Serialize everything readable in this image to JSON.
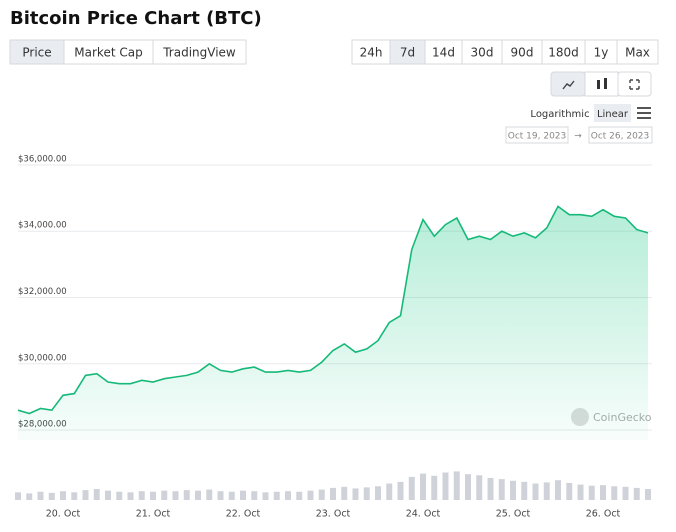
{
  "chart_data": {
    "type": "area",
    "title": "Bitcoin Price Chart (BTC)",
    "tabs": [
      "Price",
      "Market Cap",
      "TradingView"
    ],
    "tabs_selected": 0,
    "ranges": [
      "24h",
      "7d",
      "14d",
      "30d",
      "90d",
      "180d",
      "1y",
      "Max"
    ],
    "ranges_selected": 1,
    "scale_options": [
      "Logarithmic",
      "Linear"
    ],
    "scale_selected": 1,
    "log_scale": false,
    "date_from": "Oct 19, 2023",
    "date_arrow": "→",
    "date_to": "Oct 26, 2023",
    "watermark": "CoinGecko",
    "color": "#16b979",
    "grid": true,
    "categories": [
      null,
      null,
      null,
      null,
      "20. Oct",
      null,
      null,
      null,
      null,
      null,
      null,
      null,
      "21. Oct",
      null,
      null,
      null,
      null,
      null,
      null,
      null,
      "22. Oct",
      null,
      null,
      null,
      null,
      null,
      null,
      null,
      "23. Oct",
      null,
      null,
      null,
      null,
      null,
      null,
      null,
      "24. Oct",
      null,
      null,
      null,
      null,
      null,
      null,
      null,
      "25. Oct",
      null,
      null,
      null,
      null,
      null,
      null,
      null,
      "26. Oct",
      null,
      null,
      null,
      null
    ],
    "values": [
      28600,
      28500,
      28650,
      28600,
      29050,
      29100,
      29650,
      29700,
      29450,
      29400,
      29400,
      29500,
      29450,
      29550,
      29600,
      29650,
      29750,
      30000,
      29800,
      29750,
      29850,
      29900,
      29750,
      29750,
      29800,
      29750,
      29800,
      30050,
      30400,
      30600,
      30350,
      30450,
      30700,
      31250,
      31450,
      33450,
      34350,
      33850,
      34200,
      34400,
      33750,
      33850,
      33750,
      34000,
      33850,
      33950,
      33800,
      34100,
      34750,
      34500,
      34500,
      34450,
      34650,
      34450,
      34400,
      34050,
      33950
    ],
    "ylim": [
      27700,
      36300
    ],
    "yticks": [
      {
        "value": 28000,
        "label": "$28,000.00"
      },
      {
        "value": 30000,
        "label": "$30,000.00"
      },
      {
        "value": 32000,
        "label": "$32,000.00"
      },
      {
        "value": 34000,
        "label": "$34,000.00"
      },
      {
        "value": 36000,
        "label": "$36,000.00"
      }
    ],
    "volume": {
      "color": "#cfd3d9",
      "ylim": [
        0,
        100
      ],
      "values": [
        14,
        12,
        15,
        13,
        16,
        14,
        18,
        20,
        17,
        15,
        14,
        16,
        15,
        17,
        16,
        18,
        17,
        19,
        16,
        15,
        17,
        16,
        14,
        15,
        16,
        15,
        17,
        19,
        22,
        24,
        21,
        23,
        25,
        30,
        33,
        42,
        48,
        44,
        50,
        52,
        47,
        45,
        40,
        38,
        35,
        33,
        30,
        32,
        36,
        31,
        28,
        26,
        27,
        25,
        24,
        22,
        20
      ]
    }
  }
}
